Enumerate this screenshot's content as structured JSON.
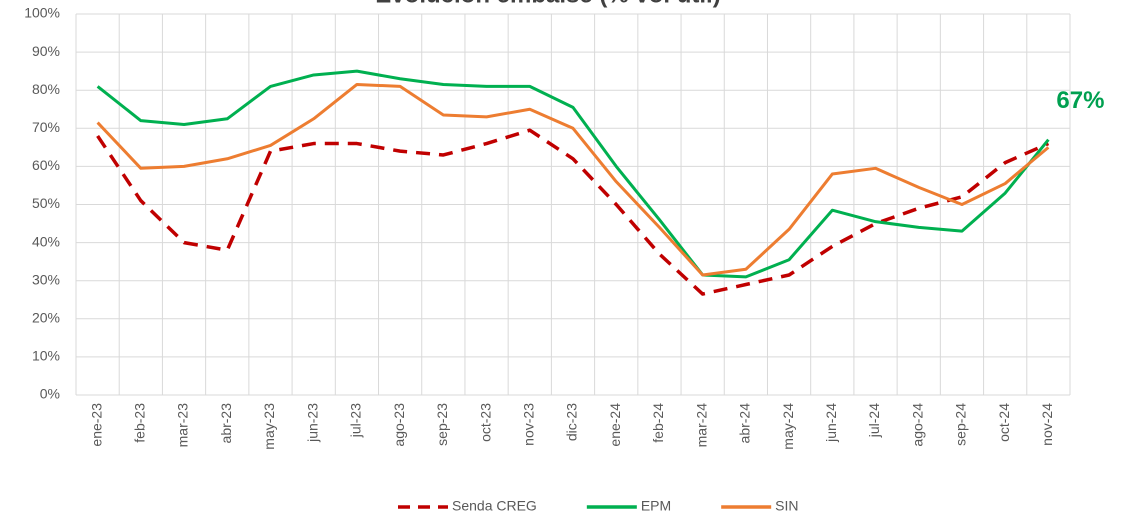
{
  "chart_data": {
    "type": "line",
    "title": "Evolución embalse (% vol útil)",
    "categories": [
      "ene-23",
      "feb-23",
      "mar-23",
      "abr-23",
      "may-23",
      "jun-23",
      "jul-23",
      "ago-23",
      "sep-23",
      "oct-23",
      "nov-23",
      "dic-23",
      "ene-24",
      "feb-24",
      "mar-24",
      "abr-24",
      "may-24",
      "jun-24",
      "jul-24",
      "ago-24",
      "sep-24",
      "oct-24",
      "nov-24"
    ],
    "series": [
      {
        "name": "Senda CREG",
        "color": "#c00000",
        "dashed": true,
        "values": [
          68,
          51,
          40,
          38,
          64,
          66,
          66,
          64,
          63,
          66,
          69.5,
          62,
          50,
          37,
          26.5,
          29,
          31.5,
          39,
          45,
          49,
          52,
          61,
          66
        ]
      },
      {
        "name": "EPM",
        "color": "#00b050",
        "dashed": false,
        "values": [
          81,
          72,
          71,
          72.5,
          81,
          84,
          85,
          83,
          81.5,
          81,
          81,
          75.5,
          60,
          46,
          31.5,
          31,
          35.5,
          48.5,
          45.5,
          44,
          43,
          53,
          67
        ]
      },
      {
        "name": "SIN",
        "color": "#ed7d31",
        "dashed": false,
        "values": [
          71.5,
          59.5,
          60,
          62,
          65.5,
          72.5,
          81.5,
          81,
          73.5,
          73,
          75,
          70,
          56,
          44,
          31.5,
          33,
          43.5,
          58,
          59.5,
          54.5,
          50,
          55.5,
          65
        ]
      }
    ],
    "annotation": {
      "text": "67%",
      "color": "#00a050"
    },
    "ylim": [
      0,
      100
    ],
    "yticks": [
      {
        "value": 0,
        "label": "0%"
      },
      {
        "value": 10,
        "label": "10%"
      },
      {
        "value": 20,
        "label": "20%"
      },
      {
        "value": 30,
        "label": "30%"
      },
      {
        "value": 40,
        "label": "40%"
      },
      {
        "value": 50,
        "label": "50%"
      },
      {
        "value": 60,
        "label": "60%"
      },
      {
        "value": 70,
        "label": "70%"
      },
      {
        "value": 80,
        "label": "80%"
      },
      {
        "value": 90,
        "label": "90%"
      },
      {
        "value": 100,
        "label": "100%"
      }
    ],
    "grid": true,
    "legend": "bottom"
  }
}
